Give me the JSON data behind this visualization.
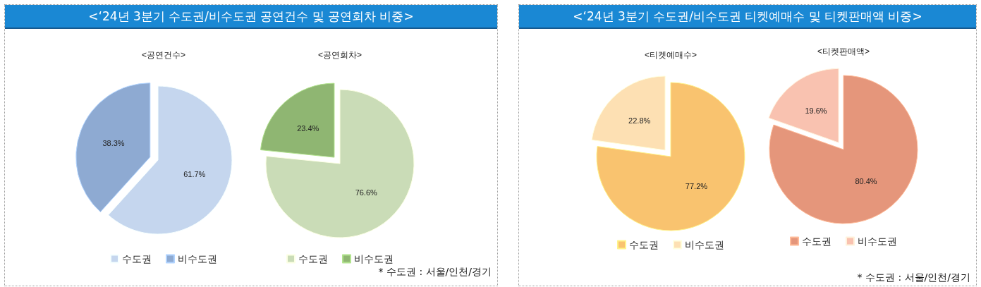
{
  "chart_data": [
    {
      "type": "pie",
      "title": "<‘24년 3분기 수도권/비수도권 공연건수 및 공연회차 비중>",
      "subtitle": "<공연건수>",
      "categories": [
        "수도권",
        "비수도권"
      ],
      "values": [
        61.7,
        38.3
      ],
      "value_labels": [
        "61.7%",
        "38.3%"
      ],
      "colors": [
        "#c5d6ee",
        "#8eaad2"
      ],
      "legend": "bottom"
    },
    {
      "type": "pie",
      "subtitle": "<공연회차>",
      "categories": [
        "수도권",
        "비수도권"
      ],
      "values": [
        76.6,
        23.4
      ],
      "value_labels": [
        "76.6%",
        "23.4%"
      ],
      "colors": [
        "#cadcb7",
        "#8fb672"
      ],
      "legend": "bottom",
      "annotations": [
        "* 수도권 : 서울/인천/경기"
      ]
    },
    {
      "type": "pie",
      "title": "<‘24년 3분기 수도권/비수도권 티켓예매수 및 티켓판매액 비중>",
      "subtitle": "<티켓예매수>",
      "categories": [
        "수도권",
        "비수도권"
      ],
      "values": [
        77.2,
        22.8
      ],
      "value_labels": [
        "77.2%",
        "22.8%"
      ],
      "colors": [
        "#f9c36f",
        "#fde0b3"
      ],
      "legend": "bottom"
    },
    {
      "type": "pie",
      "subtitle": "<티켓판매액>",
      "categories": [
        "수도권",
        "비수도권"
      ],
      "values": [
        80.4,
        19.6
      ],
      "value_labels": [
        "80.4%",
        "19.6%"
      ],
      "colors": [
        "#e5967b",
        "#f9c2b0"
      ],
      "legend": "bottom",
      "annotations": [
        "* 수도권 : 서울/인천/경기"
      ]
    }
  ]
}
